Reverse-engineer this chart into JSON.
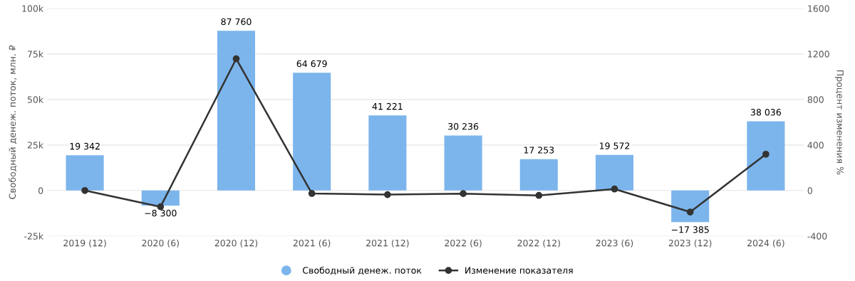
{
  "chart_data": {
    "type": "bar",
    "categories": [
      "2019 (12)",
      "2020 (6)",
      "2020 (12)",
      "2021 (6)",
      "2021 (12)",
      "2022 (6)",
      "2022 (12)",
      "2023 (6)",
      "2023 (12)",
      "2024 (6)"
    ],
    "ylabel": "Свободный денеж. поток, млн. ₽",
    "y2label": "Процент изменения %",
    "series": [
      {
        "name": "Свободный денеж. поток",
        "color": "#7cb5ec",
        "values": [
          19342,
          -8300,
          87760,
          64679,
          41221,
          30236,
          17253,
          19572,
          -17385,
          38036
        ],
        "value_labels": [
          "19 342",
          "−8 300",
          "87 760",
          "64 679",
          "41 221",
          "30 236",
          "17 253",
          "19 572",
          "−17 385",
          "38 036"
        ]
      },
      {
        "name": "Изменение показателя",
        "type": "line",
        "axis": "y2",
        "color": "#333333",
        "marker": "circle",
        "values": [
          0,
          -143,
          1157,
          -26,
          -36,
          -27,
          -43,
          13,
          -189,
          319
        ]
      }
    ],
    "ylim": [
      -25000,
      100000
    ],
    "yticks": [
      {
        "value": -25000,
        "label": "-25k"
      },
      0,
      {
        "value": 25000,
        "label": "25k"
      },
      {
        "value": 50000,
        "label": "50k"
      },
      {
        "value": 75000,
        "label": "75k"
      },
      {
        "value": 100000,
        "label": "100k"
      }
    ],
    "y2lim": [
      -400,
      1600
    ],
    "y2ticks": [
      {
        "value": -400,
        "label": "-400"
      },
      0,
      400,
      800,
      1200,
      1600
    ],
    "grid": "y",
    "legend": "bottom"
  }
}
